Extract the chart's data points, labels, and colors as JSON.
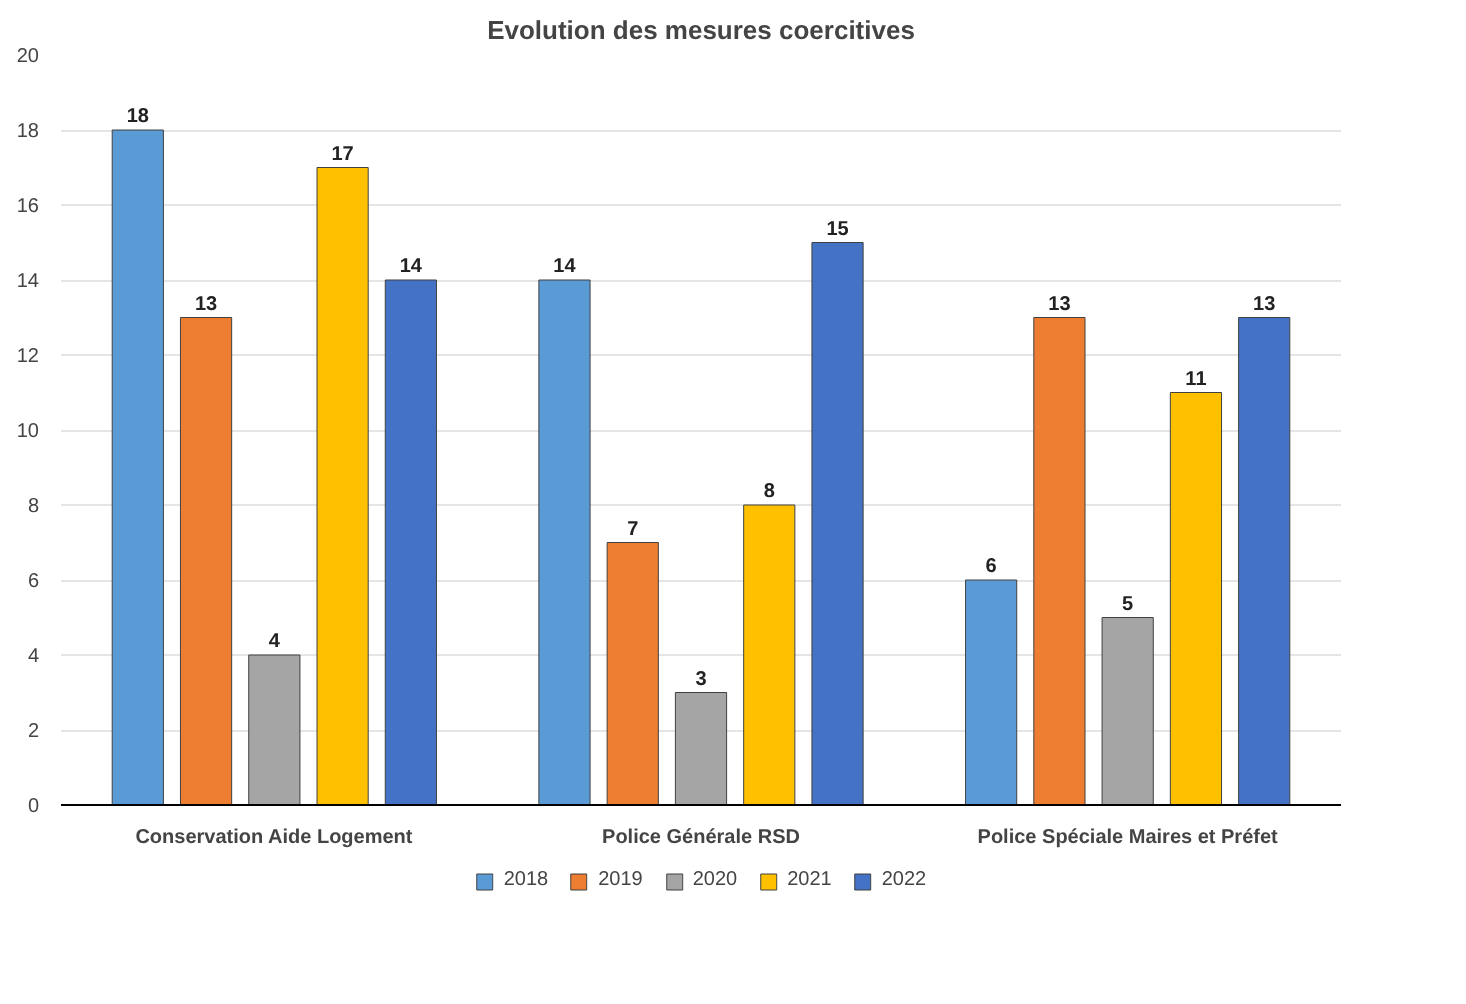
{
  "chart_data": {
    "type": "bar",
    "title": "Evolution des mesures coercitives",
    "categories": [
      "Conservation Aide Logement",
      "Police Générale RSD",
      "Police Spéciale Maires et Préfet"
    ],
    "series": [
      {
        "name": "2018",
        "color": "#5b9bd5",
        "values": [
          18,
          14,
          6
        ]
      },
      {
        "name": "2019",
        "color": "#ed7d31",
        "values": [
          13,
          7,
          13
        ]
      },
      {
        "name": "2020",
        "color": "#a5a5a5",
        "values": [
          4,
          3,
          5
        ]
      },
      {
        "name": "2021",
        "color": "#ffc000",
        "values": [
          17,
          8,
          11
        ]
      },
      {
        "name": "2022",
        "color": "#4472c4",
        "values": [
          14,
          15,
          13
        ]
      }
    ],
    "ylim": [
      0,
      20
    ],
    "yticks": [
      0,
      2,
      4,
      6,
      8,
      10,
      12,
      14,
      16,
      18,
      20
    ],
    "grid": "y",
    "legend": "bottom",
    "data_labels": true
  }
}
